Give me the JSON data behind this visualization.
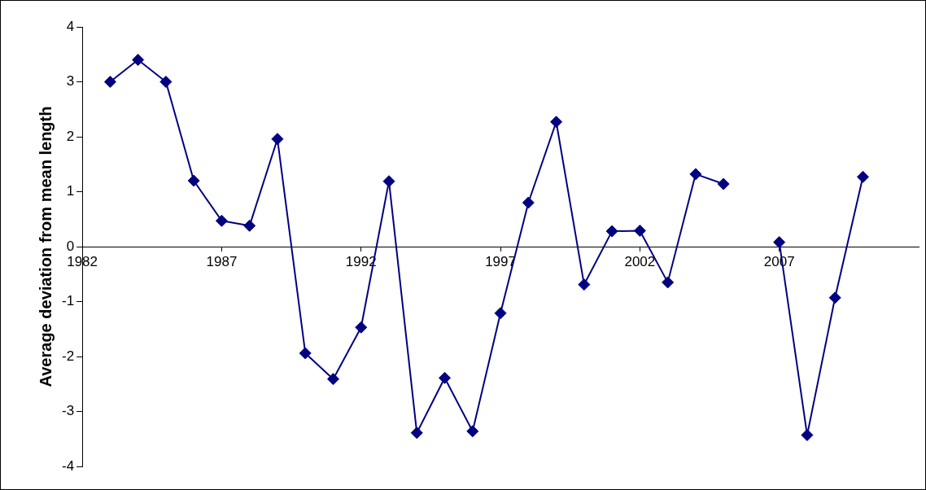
{
  "chart_data": {
    "type": "line",
    "ylabel": "Average deviation from mean length",
    "x": [
      1983,
      1984,
      1985,
      1986,
      1987,
      1988,
      1989,
      1990,
      1991,
      1992,
      1993,
      1994,
      1995,
      1996,
      1997,
      1998,
      1999,
      2000,
      2001,
      2002,
      2003,
      2004,
      2005,
      2006,
      2007,
      2008,
      2009,
      2010
    ],
    "series": [
      {
        "color": "#000080",
        "values": [
          3.0,
          3.4,
          3.0,
          1.2,
          0.47,
          0.38,
          1.96,
          -1.94,
          -2.41,
          -1.47,
          1.19,
          -3.39,
          -2.39,
          -3.36,
          -1.21,
          0.8,
          2.27,
          -0.69,
          0.28,
          0.29,
          -0.65,
          1.32,
          1.14,
          null,
          0.08,
          -3.43,
          -0.93,
          1.27
        ]
      }
    ],
    "xlim": [
      1982,
      2012
    ],
    "xticks": [
      1982,
      1987,
      1992,
      1997,
      2002,
      2007
    ],
    "ylim": [
      -4,
      4
    ],
    "yticks": [
      -4,
      -3,
      -2,
      -1,
      0,
      1,
      2,
      3,
      4
    ],
    "grid": false,
    "legend": false,
    "marker": "diamond",
    "line_style": "solid"
  }
}
